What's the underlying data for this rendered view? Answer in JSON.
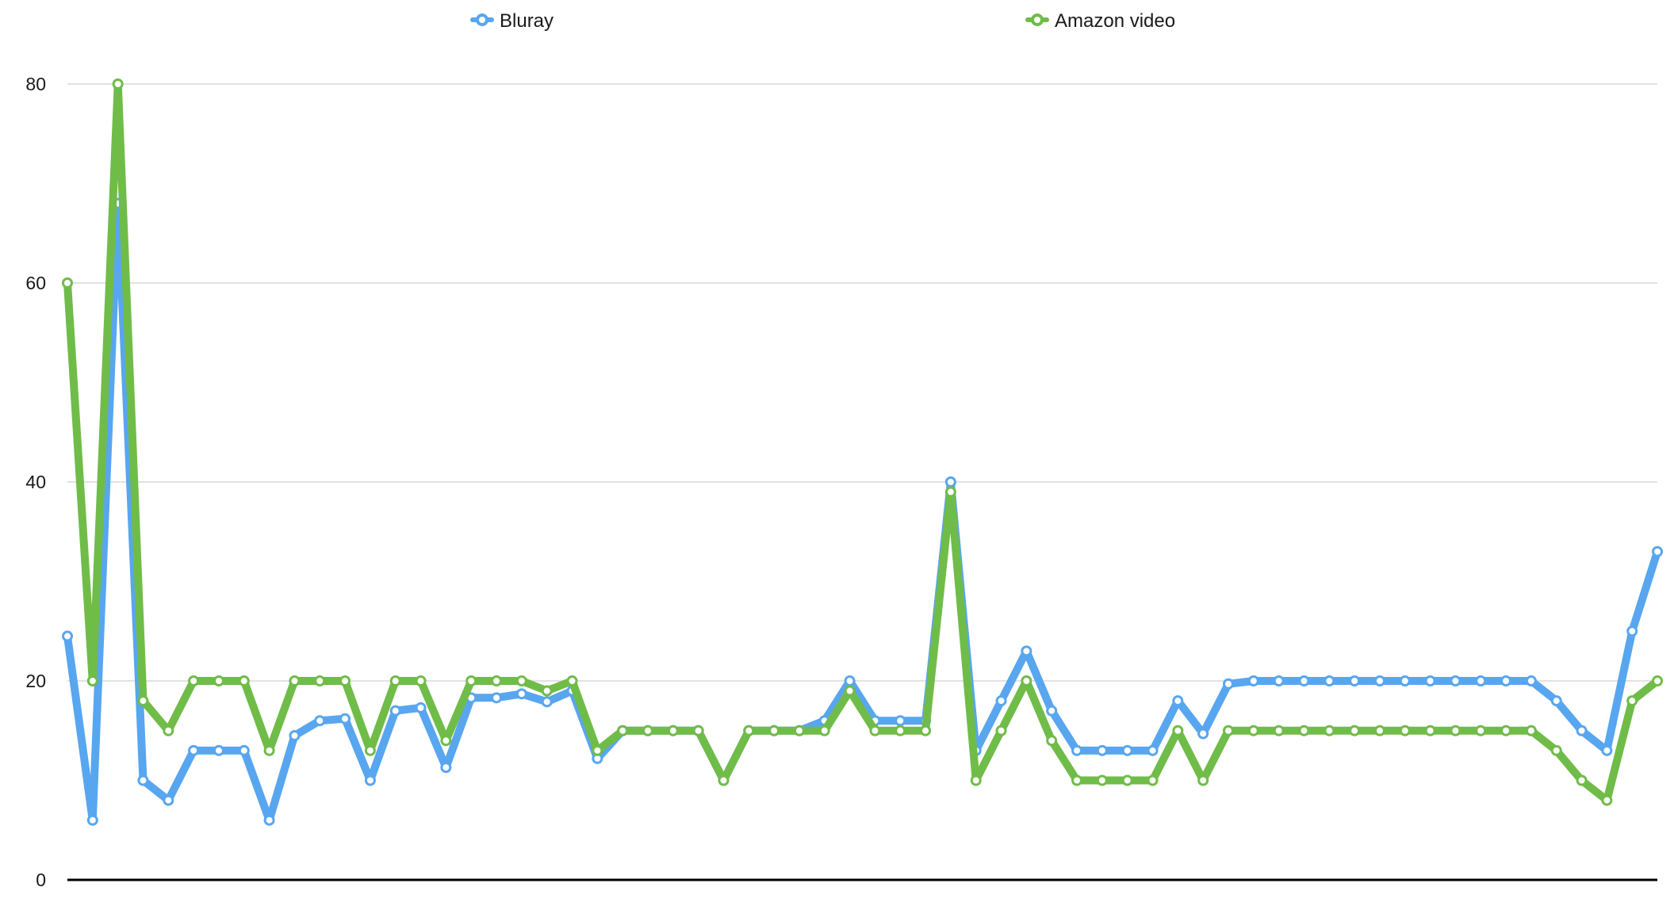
{
  "chart_data": {
    "type": "line",
    "ylim": [
      0,
      80
    ],
    "yticks": [
      0,
      20,
      40,
      60,
      80
    ],
    "grid": true,
    "legend_position": "top-center",
    "series": [
      {
        "name": "Bluray",
        "color": "#58a6ef",
        "values": [
          24.5,
          6,
          68,
          10,
          8,
          13,
          13,
          13,
          6,
          14.5,
          16,
          16.2,
          10,
          17,
          17.3,
          11.3,
          18.3,
          18.3,
          18.7,
          17.9,
          19,
          12.2,
          15,
          15,
          15,
          15,
          10,
          15,
          15,
          15,
          16,
          20,
          16,
          16,
          16,
          40,
          13,
          18,
          23,
          17,
          13,
          13,
          13,
          13,
          18,
          14.7,
          19.7,
          20,
          20,
          20,
          20,
          20,
          20,
          20,
          20,
          20,
          20,
          20,
          20,
          18,
          15,
          13,
          25,
          33
        ]
      },
      {
        "name": "Amazon video",
        "color": "#70bc49",
        "values": [
          60,
          20,
          80,
          18,
          15,
          20,
          20,
          20,
          13,
          20,
          20,
          20,
          13,
          20,
          20,
          14,
          20,
          20,
          20,
          19,
          20,
          13,
          15,
          15,
          15,
          15,
          10,
          15,
          15,
          15,
          15,
          19,
          15,
          15,
          15,
          39,
          10,
          15,
          20,
          14,
          10,
          10,
          10,
          10,
          15,
          10,
          15,
          15,
          15,
          15,
          15,
          15,
          15,
          15,
          15,
          15,
          15,
          15,
          15,
          13,
          10,
          8,
          18,
          20
        ]
      }
    ]
  }
}
